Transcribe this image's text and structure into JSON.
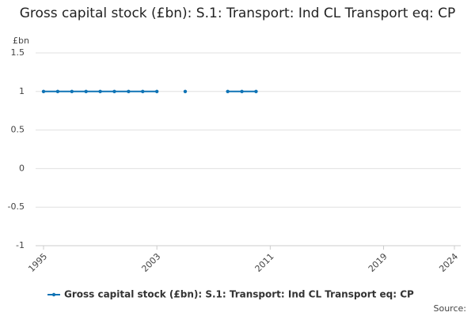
{
  "chart_data": {
    "type": "line",
    "title": "Gross capital stock (£bn): S.1: Transport: Ind CL Transport eq: CP",
    "y_label": "£bn",
    "x": [
      1995,
      1996,
      1997,
      1998,
      1999,
      2000,
      2001,
      2002,
      2003,
      2004,
      2005,
      2006,
      2007,
      2008,
      2009,
      2010,
      2011,
      2012,
      2013,
      2014,
      2015,
      2016,
      2017,
      2018,
      2019,
      2020,
      2021,
      2022,
      2023,
      2024
    ],
    "series": [
      {
        "name": "Gross capital stock (£bn): S.1: Transport: Ind CL Transport eq: CP",
        "color": "#0f73b5",
        "values": [
          1,
          1,
          1,
          1,
          1,
          1,
          1,
          1,
          1,
          null,
          1,
          null,
          null,
          1,
          1,
          1,
          null,
          null,
          null,
          null,
          null,
          null,
          null,
          null,
          null,
          null,
          null,
          null,
          null,
          null
        ]
      }
    ],
    "xlim": [
      1995,
      2024
    ],
    "xticks": [
      1995,
      2003,
      2011,
      2019,
      2024
    ],
    "ylim": [
      -1,
      1.5
    ],
    "yticks": [
      -1,
      -0.5,
      0,
      0.5,
      1,
      1.5
    ],
    "grid": true,
    "legend": "bottom",
    "source": "Source:"
  }
}
